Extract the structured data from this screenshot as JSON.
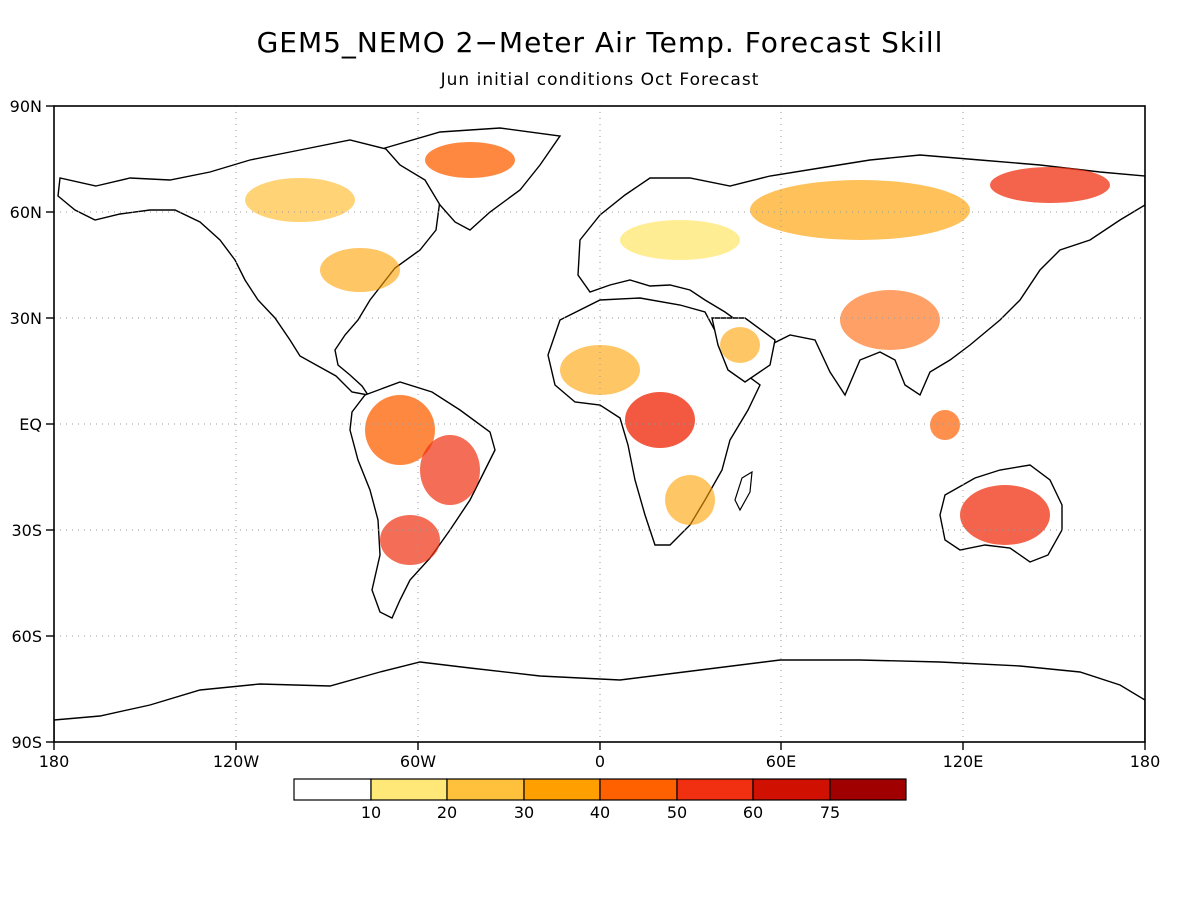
{
  "title": "GEM5_NEMO 2−Meter Air Temp. Forecast Skill",
  "subtitle": "Jun initial conditions   Oct Forecast",
  "map": {
    "lat_labels": [
      "90N",
      "60N",
      "30N",
      "EQ",
      "30S",
      "60S",
      "90S"
    ],
    "lon_labels": [
      "180",
      "120W",
      "60W",
      "0",
      "60E",
      "120E",
      "180"
    ]
  },
  "legend": {
    "colors": [
      "#ffffff",
      "#ffe878",
      "#ffc03c",
      "#ffa000",
      "#ff6000",
      "#f03010",
      "#d01000",
      "#a00000"
    ],
    "labels": [
      "10",
      "20",
      "30",
      "40",
      "50",
      "60",
      "75"
    ]
  }
}
